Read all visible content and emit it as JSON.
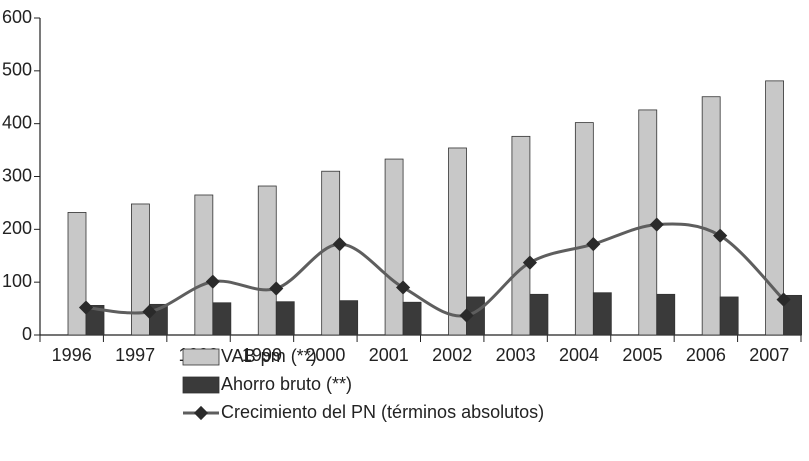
{
  "chart_data": {
    "type": "bar",
    "categories": [
      "1996",
      "1997",
      "1998",
      "1999",
      "2000",
      "2001",
      "2002",
      "2003",
      "2004",
      "2005",
      "2006",
      "2007"
    ],
    "series": [
      {
        "name": "VAB pm (**)",
        "type": "bar",
        "color": "#c8c8c8",
        "values": [
          232,
          248,
          265,
          282,
          310,
          333,
          354,
          376,
          402,
          426,
          451,
          481
        ]
      },
      {
        "name": "Ahorro bruto (**)",
        "type": "bar",
        "color": "#3a3a3a",
        "values": [
          56,
          58,
          61,
          63,
          65,
          62,
          72,
          77,
          80,
          77,
          72,
          75
        ]
      },
      {
        "name": "Crecimiento del PN (términos absolutos)",
        "type": "line",
        "color": "#5e5e5e",
        "values": [
          52,
          44,
          101,
          88,
          172,
          90,
          37,
          137,
          172,
          209,
          188,
          67
        ]
      }
    ],
    "ylim": [
      0,
      600
    ],
    "yticks": [
      0,
      100,
      200,
      300,
      400,
      500,
      600
    ]
  }
}
